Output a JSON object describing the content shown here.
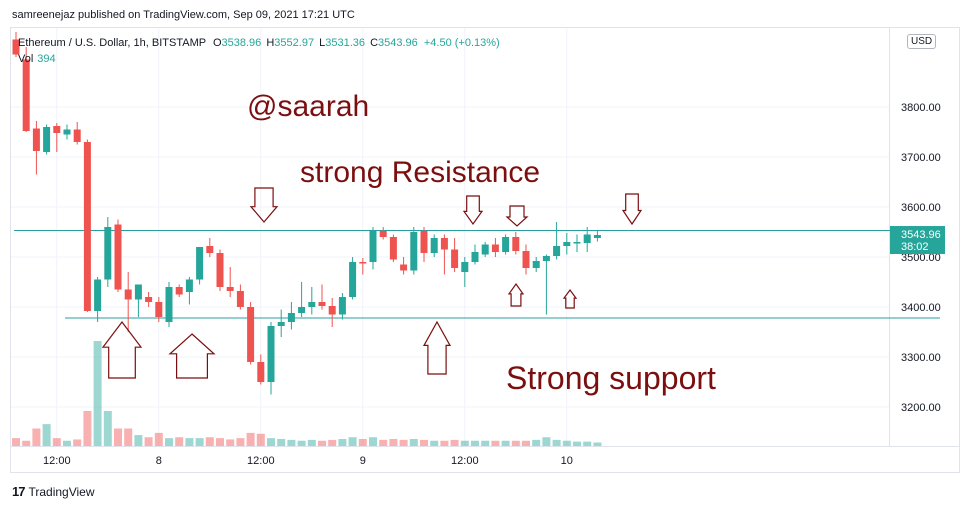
{
  "header": {
    "published_line": "samreenejaz published on TradingView.com, Sep 09, 2021 17:21 UTC"
  },
  "legend": {
    "symbol": "Ethereum / U.S. Dollar, 1h, BITSTAMP",
    "o_label": "O",
    "o_value": "3538.96",
    "h_label": "H",
    "h_value": "3552.97",
    "l_label": "L",
    "l_value": "3531.36",
    "c_label": "C",
    "c_value": "3543.96",
    "change": "+4.50 (+0.13%)",
    "vol_label": "Vol",
    "vol_value": "394"
  },
  "price_scale": {
    "currency": "USD",
    "current_price": "3543.96",
    "countdown": "38:02"
  },
  "annotations": {
    "handle": "@saarah",
    "resistance": "strong Resistance",
    "support": "Strong support"
  },
  "footer": {
    "brand": "TradingView"
  },
  "colors": {
    "up": "#26a69a",
    "down": "#ef5350",
    "line": "#2a9d9d",
    "annotation": "#7b0f0f",
    "grid": "#f0f3fa"
  },
  "chart_data": {
    "type": "candlestick",
    "ylim": [
      3120,
      3960
    ],
    "y_ticks": [
      "3800.00",
      "3700.00",
      "3600.00",
      "3500.00",
      "3400.00",
      "3300.00",
      "3200.00"
    ],
    "y_tick_values": [
      3800,
      3700,
      3600,
      3500,
      3400,
      3300,
      3200
    ],
    "x_ticks": [
      "12:00",
      "8",
      "12:00",
      "9",
      "12:00",
      "10"
    ],
    "x_tick_index": [
      4,
      14,
      24,
      34,
      44,
      54
    ],
    "resistance_level": 3553,
    "support_level": 3378,
    "candles": [
      {
        "o": 3935,
        "h": 3950,
        "l": 3900,
        "c": 3905,
        "v": 18
      },
      {
        "o": 3895,
        "h": 3920,
        "l": 3750,
        "c": 3752,
        "v": 12
      },
      {
        "o": 3757,
        "h": 3772,
        "l": 3665,
        "c": 3712,
        "v": 40
      },
      {
        "o": 3710,
        "h": 3765,
        "l": 3705,
        "c": 3760,
        "v": 50
      },
      {
        "o": 3762,
        "h": 3768,
        "l": 3710,
        "c": 3748,
        "v": 18
      },
      {
        "o": 3745,
        "h": 3765,
        "l": 3735,
        "c": 3755,
        "v": 12
      },
      {
        "o": 3755,
        "h": 3770,
        "l": 3725,
        "c": 3730,
        "v": 15
      },
      {
        "o": 3730,
        "h": 3735,
        "l": 3390,
        "c": 3392,
        "v": 80
      },
      {
        "o": 3392,
        "h": 3460,
        "l": 3370,
        "c": 3455,
        "v": 240
      },
      {
        "o": 3455,
        "h": 3580,
        "l": 3440,
        "c": 3560,
        "v": 80
      },
      {
        "o": 3565,
        "h": 3575,
        "l": 3430,
        "c": 3435,
        "v": 40
      },
      {
        "o": 3435,
        "h": 3470,
        "l": 3350,
        "c": 3415,
        "v": 40
      },
      {
        "o": 3415,
        "h": 3440,
        "l": 3380,
        "c": 3445,
        "v": 25
      },
      {
        "o": 3420,
        "h": 3430,
        "l": 3400,
        "c": 3410,
        "v": 20
      },
      {
        "o": 3410,
        "h": 3420,
        "l": 3370,
        "c": 3380,
        "v": 30
      },
      {
        "o": 3370,
        "h": 3450,
        "l": 3360,
        "c": 3440,
        "v": 18
      },
      {
        "o": 3440,
        "h": 3445,
        "l": 3420,
        "c": 3425,
        "v": 20
      },
      {
        "o": 3430,
        "h": 3460,
        "l": 3405,
        "c": 3455,
        "v": 18
      },
      {
        "o": 3455,
        "h": 3520,
        "l": 3445,
        "c": 3520,
        "v": 18
      },
      {
        "o": 3522,
        "h": 3538,
        "l": 3500,
        "c": 3508,
        "v": 20
      },
      {
        "o": 3508,
        "h": 3515,
        "l": 3432,
        "c": 3440,
        "v": 18
      },
      {
        "o": 3440,
        "h": 3480,
        "l": 3420,
        "c": 3432,
        "v": 15
      },
      {
        "o": 3432,
        "h": 3445,
        "l": 3395,
        "c": 3400,
        "v": 18
      },
      {
        "o": 3400,
        "h": 3410,
        "l": 3285,
        "c": 3290,
        "v": 30
      },
      {
        "o": 3290,
        "h": 3305,
        "l": 3245,
        "c": 3250,
        "v": 28
      },
      {
        "o": 3250,
        "h": 3370,
        "l": 3225,
        "c": 3362,
        "v": 18
      },
      {
        "o": 3362,
        "h": 3395,
        "l": 3340,
        "c": 3370,
        "v": 16
      },
      {
        "o": 3370,
        "h": 3410,
        "l": 3355,
        "c": 3388,
        "v": 14
      },
      {
        "o": 3388,
        "h": 3450,
        "l": 3380,
        "c": 3400,
        "v": 12
      },
      {
        "o": 3400,
        "h": 3440,
        "l": 3385,
        "c": 3410,
        "v": 14
      },
      {
        "o": 3410,
        "h": 3445,
        "l": 3395,
        "c": 3402,
        "v": 12
      },
      {
        "o": 3402,
        "h": 3418,
        "l": 3360,
        "c": 3385,
        "v": 14
      },
      {
        "o": 3385,
        "h": 3428,
        "l": 3375,
        "c": 3420,
        "v": 16
      },
      {
        "o": 3420,
        "h": 3500,
        "l": 3415,
        "c": 3490,
        "v": 20
      },
      {
        "o": 3490,
        "h": 3498,
        "l": 3465,
        "c": 3488,
        "v": 16
      },
      {
        "o": 3490,
        "h": 3560,
        "l": 3475,
        "c": 3552,
        "v": 20
      },
      {
        "o": 3552,
        "h": 3560,
        "l": 3535,
        "c": 3540,
        "v": 14
      },
      {
        "o": 3540,
        "h": 3545,
        "l": 3490,
        "c": 3495,
        "v": 16
      },
      {
        "o": 3485,
        "h": 3500,
        "l": 3465,
        "c": 3473,
        "v": 14
      },
      {
        "o": 3473,
        "h": 3560,
        "l": 3465,
        "c": 3550,
        "v": 16
      },
      {
        "o": 3552,
        "h": 3560,
        "l": 3490,
        "c": 3508,
        "v": 14
      },
      {
        "o": 3508,
        "h": 3545,
        "l": 3500,
        "c": 3538,
        "v": 12
      },
      {
        "o": 3538,
        "h": 3545,
        "l": 3465,
        "c": 3515,
        "v": 12
      },
      {
        "o": 3515,
        "h": 3538,
        "l": 3470,
        "c": 3478,
        "v": 14
      },
      {
        "o": 3470,
        "h": 3500,
        "l": 3440,
        "c": 3490,
        "v": 12
      },
      {
        "o": 3490,
        "h": 3525,
        "l": 3485,
        "c": 3510,
        "v": 12
      },
      {
        "o": 3505,
        "h": 3530,
        "l": 3500,
        "c": 3525,
        "v": 12
      },
      {
        "o": 3525,
        "h": 3538,
        "l": 3500,
        "c": 3510,
        "v": 12
      },
      {
        "o": 3510,
        "h": 3545,
        "l": 3505,
        "c": 3540,
        "v": 12
      },
      {
        "o": 3540,
        "h": 3550,
        "l": 3505,
        "c": 3512,
        "v": 12
      },
      {
        "o": 3512,
        "h": 3525,
        "l": 3465,
        "c": 3478,
        "v": 12
      },
      {
        "o": 3478,
        "h": 3500,
        "l": 3470,
        "c": 3492,
        "v": 14
      },
      {
        "o": 3492,
        "h": 3505,
        "l": 3385,
        "c": 3502,
        "v": 20
      },
      {
        "o": 3502,
        "h": 3570,
        "l": 3495,
        "c": 3522,
        "v": 14
      },
      {
        "o": 3522,
        "h": 3548,
        "l": 3505,
        "c": 3530,
        "v": 12
      },
      {
        "o": 3530,
        "h": 3545,
        "l": 3510,
        "c": 3530,
        "v": 10
      },
      {
        "o": 3528,
        "h": 3560,
        "l": 3510,
        "c": 3545,
        "v": 10
      },
      {
        "o": 3538,
        "h": 3553,
        "l": 3531,
        "c": 3544,
        "v": 8
      }
    ]
  }
}
